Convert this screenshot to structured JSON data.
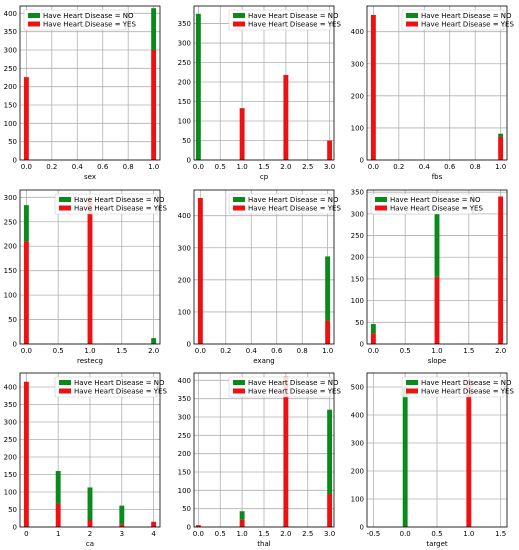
{
  "colors": {
    "no": "#0a8a1a",
    "yes": "#ee1111",
    "grid": "#b0b0b0"
  },
  "chart_data": [
    {
      "type": "bar",
      "stacked": true,
      "xlabel": "sex",
      "x": [
        0,
        1
      ],
      "xlim": [
        -0.05,
        1.05
      ],
      "xticks": [
        "0.0",
        "0.2",
        "0.4",
        "0.6",
        "0.8",
        "1.0"
      ],
      "xtick_values": [
        0,
        0.2,
        0.4,
        0.6,
        0.8,
        1.0
      ],
      "ylim": [
        0,
        420
      ],
      "yticks": [
        0,
        50,
        100,
        150,
        200,
        250,
        300,
        350,
        400
      ],
      "legend": "top-left",
      "grid": true,
      "series": [
        {
          "name": "Have Heart Disease = NO",
          "values": [
            0,
            114
          ]
        },
        {
          "name": "Have Heart Disease = YES",
          "values": [
            226,
            300
          ]
        }
      ]
    },
    {
      "type": "bar",
      "stacked": true,
      "xlabel": "cp",
      "x": [
        0,
        1,
        2,
        3
      ],
      "xlim": [
        -0.1,
        3.1
      ],
      "xticks": [
        "0.0",
        "0.5",
        "1.0",
        "1.5",
        "2.0",
        "2.5",
        "3.0"
      ],
      "xtick_values": [
        0,
        0.5,
        1,
        1.5,
        2,
        2.5,
        3
      ],
      "ylim": [
        0,
        395
      ],
      "yticks": [
        0,
        50,
        100,
        150,
        200,
        250,
        300,
        350
      ],
      "legend": "top-right",
      "grid": true,
      "series": [
        {
          "name": "Have Heart Disease = NO",
          "values": [
            375,
            0,
            0,
            0
          ]
        },
        {
          "name": "Have Heart Disease = YES",
          "values": [
            0,
            133,
            218,
            50
          ]
        }
      ]
    },
    {
      "type": "bar",
      "stacked": true,
      "xlabel": "fbs",
      "x": [
        0,
        1
      ],
      "xlim": [
        -0.05,
        1.05
      ],
      "xticks": [
        "0.0",
        "0.2",
        "0.4",
        "0.6",
        "0.8",
        "1.0"
      ],
      "xtick_values": [
        0,
        0.2,
        0.4,
        0.6,
        0.8,
        1.0
      ],
      "ylim": [
        0,
        480
      ],
      "yticks": [
        0,
        100,
        200,
        300,
        400
      ],
      "legend": "top-right",
      "grid": true,
      "series": [
        {
          "name": "Have Heart Disease = NO",
          "values": [
            0,
            9
          ]
        },
        {
          "name": "Have Heart Disease = YES",
          "values": [
            452,
            73
          ]
        }
      ]
    },
    {
      "type": "bar",
      "stacked": true,
      "xlabel": "restecg",
      "x": [
        0,
        1,
        2
      ],
      "xlim": [
        -0.1,
        2.1
      ],
      "xticks": [
        "0.0",
        "0.5",
        "1.0",
        "1.5",
        "2.0"
      ],
      "xtick_values": [
        0,
        0.5,
        1,
        1.5,
        2
      ],
      "ylim": [
        0,
        315
      ],
      "yticks": [
        0,
        50,
        100,
        150,
        200,
        250,
        300
      ],
      "legend": "top-right",
      "grid": true,
      "series": [
        {
          "name": "Have Heart Disease = NO",
          "values": [
            74,
            0,
            12
          ]
        },
        {
          "name": "Have Heart Disease = YES",
          "values": [
            210,
            300,
            0
          ]
        }
      ]
    },
    {
      "type": "bar",
      "stacked": true,
      "xlabel": "exang",
      "x": [
        0,
        1
      ],
      "xlim": [
        -0.05,
        1.05
      ],
      "xticks": [
        "0.0",
        "0.2",
        "0.4",
        "0.6",
        "0.8",
        "1.0"
      ],
      "xtick_values": [
        0,
        0.2,
        0.4,
        0.6,
        0.8,
        1.0
      ],
      "ylim": [
        0,
        480
      ],
      "yticks": [
        0,
        100,
        200,
        300,
        400
      ],
      "legend": "top-right",
      "grid": true,
      "series": [
        {
          "name": "Have Heart Disease = NO",
          "values": [
            0,
            200
          ]
        },
        {
          "name": "Have Heart Disease = YES",
          "values": [
            455,
            73
          ]
        }
      ]
    },
    {
      "type": "bar",
      "stacked": true,
      "xlabel": "slope",
      "x": [
        0,
        1,
        2
      ],
      "xlim": [
        -0.1,
        2.1
      ],
      "xticks": [
        "0.0",
        "0.5",
        "1.0",
        "1.5",
        "2.0"
      ],
      "xtick_values": [
        0,
        0.5,
        1,
        1.5,
        2
      ],
      "ylim": [
        0,
        355
      ],
      "yticks": [
        0,
        50,
        100,
        150,
        200,
        250,
        300,
        350
      ],
      "legend": "top-left",
      "grid": true,
      "series": [
        {
          "name": "Have Heart Disease = NO",
          "values": [
            21,
            145,
            0
          ]
        },
        {
          "name": "Have Heart Disease = YES",
          "values": [
            25,
            155,
            340
          ]
        }
      ]
    },
    {
      "type": "bar",
      "stacked": true,
      "xlabel": "ca",
      "x": [
        0,
        1,
        2,
        3,
        4
      ],
      "xlim": [
        -0.2,
        4.2
      ],
      "xticks": [
        "0",
        "1",
        "2",
        "3",
        "4"
      ],
      "xtick_values": [
        0,
        1,
        2,
        3,
        4
      ],
      "ylim": [
        0,
        440
      ],
      "yticks": [
        0,
        50,
        100,
        150,
        200,
        250,
        300,
        350,
        400
      ],
      "legend": "top-right",
      "grid": true,
      "series": [
        {
          "name": "Have Heart Disease = NO",
          "values": [
            0,
            93,
            93,
            53,
            0
          ]
        },
        {
          "name": "Have Heart Disease = YES",
          "values": [
            415,
            67,
            20,
            8,
            15
          ]
        }
      ]
    },
    {
      "type": "bar",
      "stacked": true,
      "xlabel": "thal",
      "x": [
        0,
        1,
        2,
        3
      ],
      "xlim": [
        -0.1,
        3.1
      ],
      "xticks": [
        "0.0",
        "0.5",
        "1.0",
        "1.5",
        "2.0",
        "2.5",
        "3.0"
      ],
      "xtick_values": [
        0,
        0.5,
        1,
        1.5,
        2,
        2.5,
        3
      ],
      "ylim": [
        0,
        420
      ],
      "yticks": [
        0,
        50,
        100,
        150,
        200,
        250,
        300,
        350,
        400
      ],
      "legend": "top-right",
      "grid": true,
      "series": [
        {
          "name": "Have Heart Disease = NO",
          "values": [
            0,
            23,
            0,
            230
          ]
        },
        {
          "name": "Have Heart Disease = YES",
          "values": [
            5,
            20,
            410,
            90
          ]
        }
      ]
    },
    {
      "type": "bar",
      "stacked": true,
      "xlabel": "target",
      "x": [
        0,
        1
      ],
      "xlim": [
        -0.6,
        1.6
      ],
      "xticks": [
        "-0.5",
        "0.0",
        "0.5",
        "1.0",
        "1.5"
      ],
      "xtick_values": [
        -0.5,
        0,
        0.5,
        1,
        1.5
      ],
      "ylim": [
        0,
        550
      ],
      "yticks": [
        0,
        100,
        200,
        300,
        400,
        500
      ],
      "legend": "top-right",
      "grid": true,
      "series": [
        {
          "name": "Have Heart Disease = NO",
          "values": [
            500,
            0
          ]
        },
        {
          "name": "Have Heart Disease = YES",
          "values": [
            0,
            526
          ]
        }
      ]
    }
  ]
}
